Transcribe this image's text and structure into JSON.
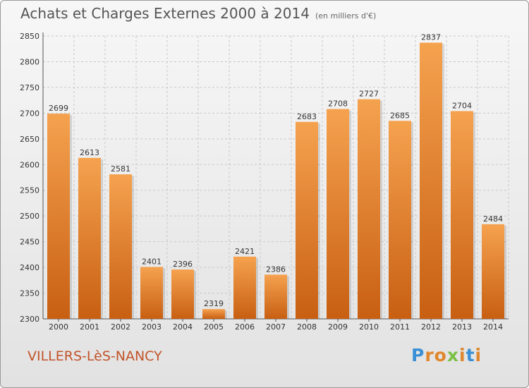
{
  "header": {
    "title": "Achats et Charges Externes 2000 à 2014",
    "subtitle": "(en milliers d'€)"
  },
  "footer": {
    "city": "VILLERS-LèS-NANCY",
    "logo_letters": [
      "P",
      "r",
      "o",
      "x",
      "i",
      "t",
      "i"
    ],
    "logo_colors": [
      "#3a8fd6",
      "#e0862c",
      "#e0862c",
      "#7ac043",
      "#e0862c",
      "#3a8fd6",
      "#e0862c"
    ]
  },
  "colors": {
    "bar_light": "#f5a24f",
    "bar_dark": "#c85f12",
    "grid": "#c8c8c8",
    "axis": "#555555"
  },
  "chart_data": {
    "type": "bar",
    "title": "Achats et Charges Externes 2000 à 2014",
    "subtitle": "(en milliers d'€)",
    "categories": [
      "2000",
      "2001",
      "2002",
      "2003",
      "2004",
      "2005",
      "2006",
      "2007",
      "2008",
      "2009",
      "2010",
      "2011",
      "2012",
      "2013",
      "2014"
    ],
    "values": [
      2699,
      2613,
      2581,
      2401,
      2396,
      2319,
      2421,
      2386,
      2683,
      2708,
      2727,
      2685,
      2837,
      2704,
      2484
    ],
    "ylim": [
      2300,
      2850
    ],
    "yticks": [
      2300,
      2350,
      2400,
      2450,
      2500,
      2550,
      2600,
      2650,
      2700,
      2750,
      2800,
      2850
    ],
    "grid": true,
    "data_labels": true
  }
}
